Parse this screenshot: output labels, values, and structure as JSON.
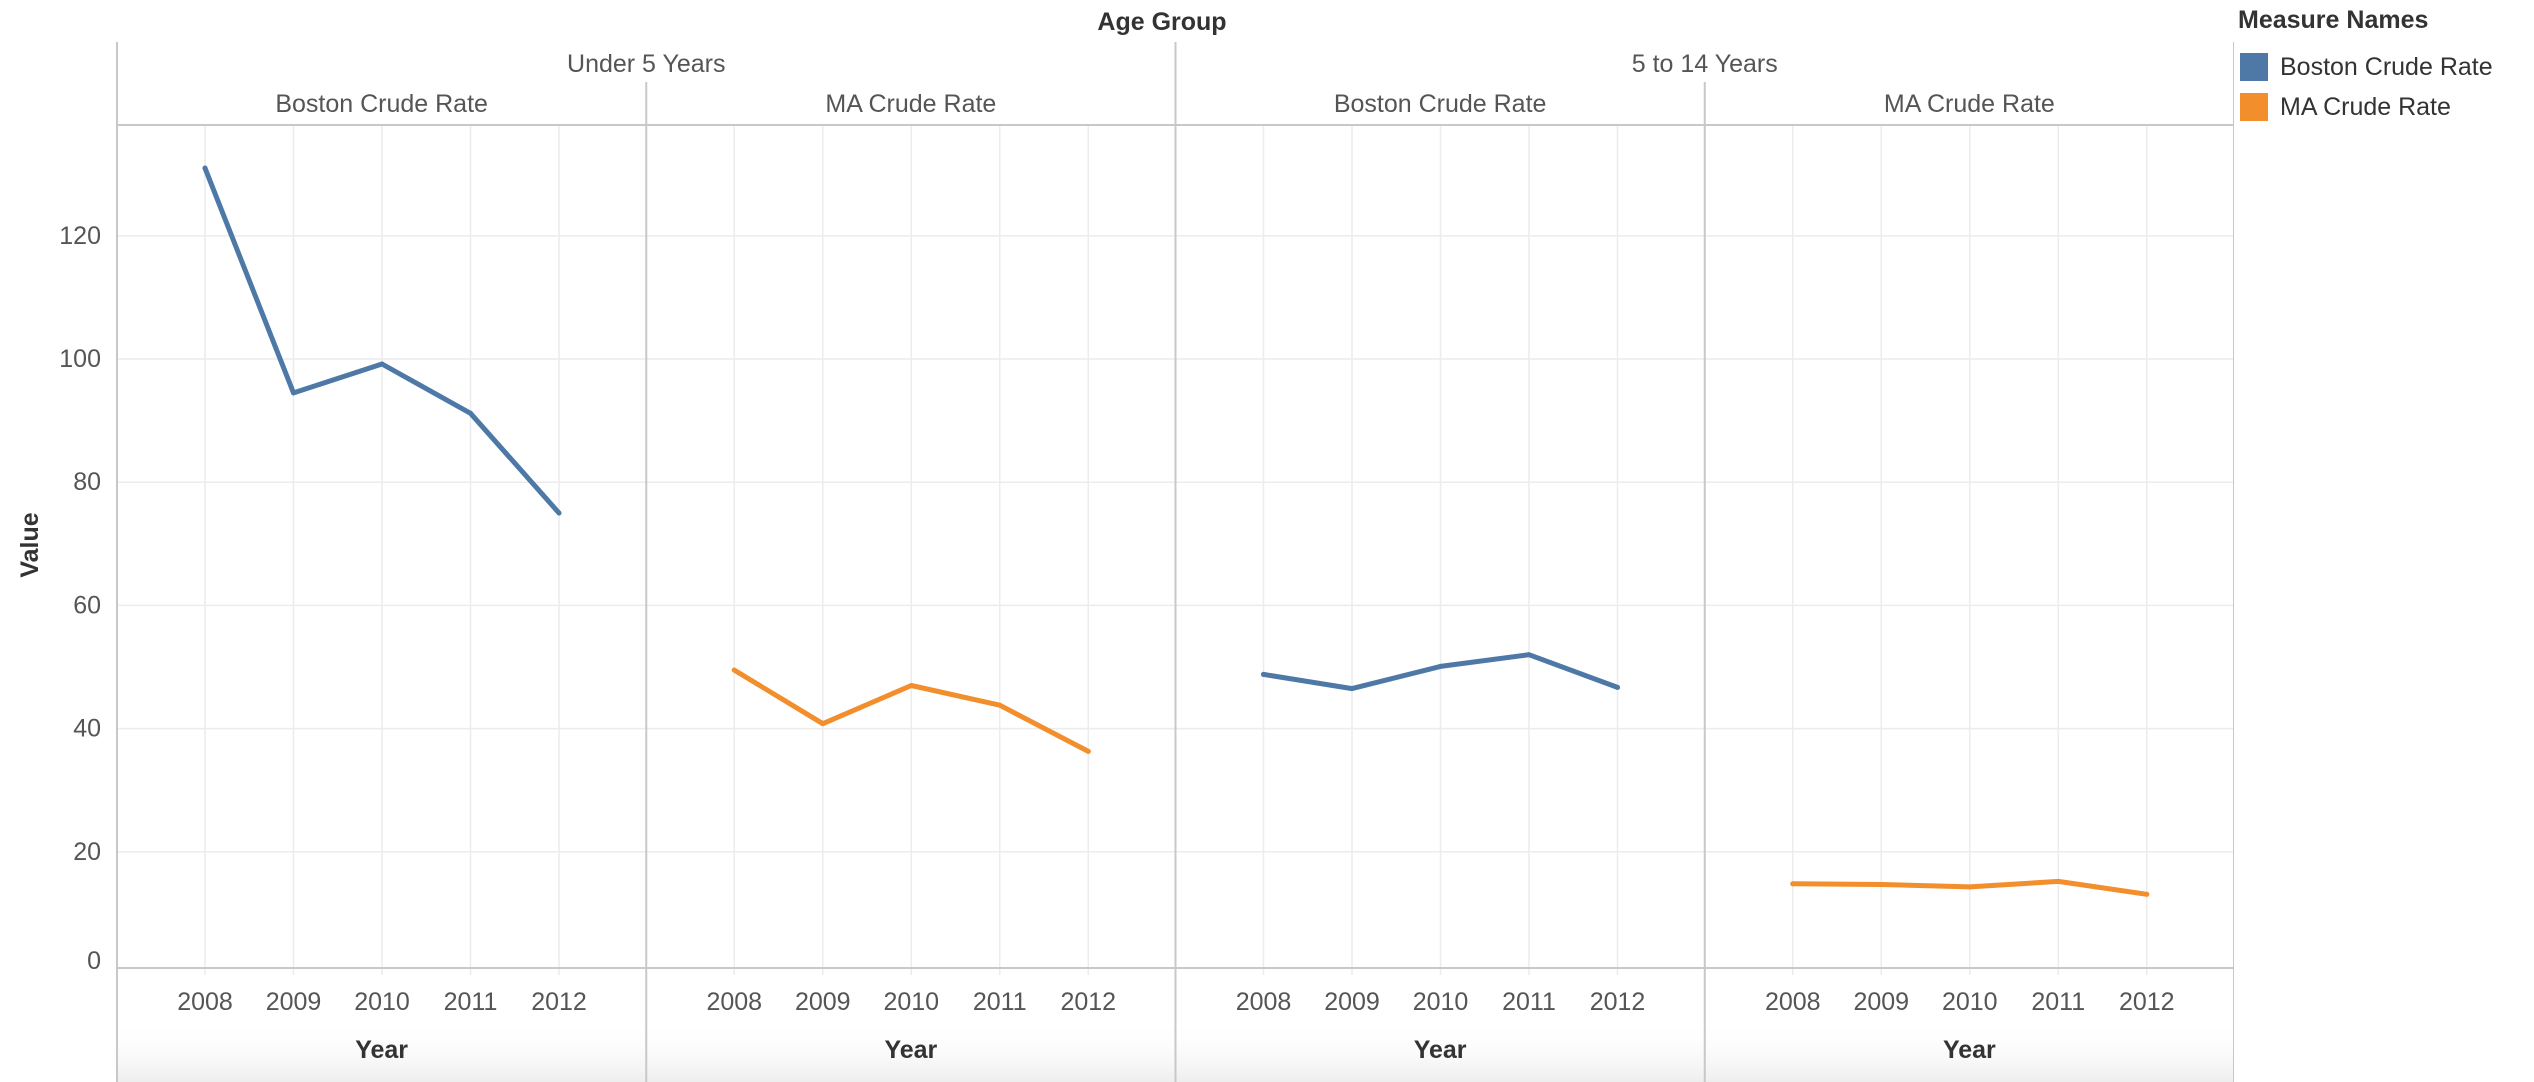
{
  "header": {
    "age_group_title": "Age Group"
  },
  "legend": {
    "title": "Measure Names",
    "items": [
      {
        "label": "Boston Crude Rate",
        "color": "#4e79a7"
      },
      {
        "label": "MA Crude Rate",
        "color": "#f28e2b"
      }
    ]
  },
  "chart_data": {
    "type": "line",
    "title": "Age Group",
    "ylabel": "Value",
    "xlabel": "Year",
    "ylim": [
      0,
      138
    ],
    "yticks": [
      0,
      20,
      40,
      60,
      80,
      100,
      120
    ],
    "grid": true,
    "legend_placement": "top-right",
    "groups": [
      {
        "name": "Under 5 Years",
        "panes": [
          {
            "measure": "Boston Crude Rate",
            "color": "#4e79a7",
            "x": [
              "2008",
              "2009",
              "2010",
              "2011",
              "2012"
            ],
            "values": [
              131.0,
              94.5,
              99.2,
              91.2,
              75.0
            ]
          },
          {
            "measure": "MA Crude Rate",
            "color": "#f28e2b",
            "x": [
              "2008",
              "2009",
              "2010",
              "2011",
              "2012"
            ],
            "values": [
              49.5,
              40.8,
              47.0,
              43.8,
              36.3
            ]
          }
        ]
      },
      {
        "name": "5 to 14 Years",
        "panes": [
          {
            "measure": "Boston Crude Rate",
            "color": "#4e79a7",
            "x": [
              "2008",
              "2009",
              "2010",
              "2011",
              "2012"
            ],
            "values": [
              48.8,
              46.5,
              50.1,
              52.0,
              46.7
            ]
          },
          {
            "measure": "MA Crude Rate",
            "color": "#f28e2b",
            "x": [
              "2008",
              "2009",
              "2010",
              "2011",
              "2012"
            ],
            "values": [
              14.8,
              14.7,
              14.3,
              15.2,
              13.1
            ]
          }
        ]
      }
    ]
  }
}
